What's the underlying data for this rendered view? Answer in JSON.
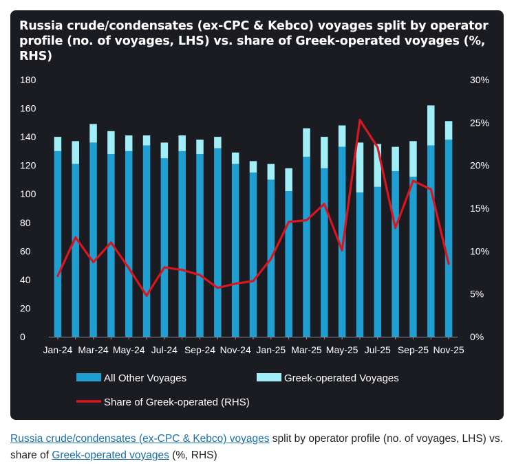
{
  "chart_data": {
    "type": "bar",
    "stacked": true,
    "title": "Russia crude/condensates (ex-CPC & Kebco) voyages split by operator profile (no. of voyages, LHS) vs. share of Greek-operated voyages (%, RHS)",
    "months": [
      "Jan-24",
      "Feb-24",
      "Mar-24",
      "Apr-24",
      "May-24",
      "Jun-24",
      "Jul-24",
      "Aug-24",
      "Sep-24",
      "Oct-24",
      "Nov-24",
      "Dec-24",
      "Jan-25",
      "Feb-25",
      "Mar-25",
      "Apr-25",
      "May-25",
      "Jun-25",
      "Jul-25",
      "Aug-25",
      "Sep-25",
      "Oct-25",
      "Nov-25"
    ],
    "x_tick_labels": [
      "Jan-24",
      "Mar-24",
      "May-24",
      "Jul-24",
      "Sep-24",
      "Nov-24",
      "Jan-25",
      "Mar-25",
      "May-25",
      "Jul-25",
      "Sep-25",
      "Nov-25"
    ],
    "series": [
      {
        "name": "All Other Voyages",
        "color": "#1f9fd1",
        "values": [
          130,
          121,
          136,
          128,
          130,
          134,
          125,
          130,
          128,
          132,
          121,
          115,
          110,
          102,
          126,
          118,
          133,
          101,
          105,
          116,
          112,
          134,
          138
        ]
      },
      {
        "name": "Greek-operated Voyages",
        "color": "#9feef8",
        "values": [
          10,
          16,
          13,
          16,
          11,
          7,
          11,
          11,
          10,
          8,
          8,
          8,
          11,
          16,
          20,
          22,
          15,
          35,
          30,
          17,
          25,
          28,
          13
        ]
      }
    ],
    "line_series": {
      "name": "Share of Greek-operated (RHS)",
      "color": "#d9161f",
      "axis": "right",
      "values": [
        7.1,
        11.6,
        8.7,
        11.0,
        8.0,
        4.8,
        8.1,
        7.8,
        7.2,
        5.7,
        6.2,
        6.5,
        9.1,
        13.4,
        13.6,
        15.5,
        10.1,
        25.3,
        22.1,
        12.7,
        18.2,
        17.2,
        8.5
      ]
    },
    "y_left": {
      "min": 0,
      "max": 180,
      "ticks": [
        "0",
        "20",
        "40",
        "60",
        "80",
        "100",
        "120",
        "140",
        "160",
        "180"
      ]
    },
    "y_right": {
      "min": 0,
      "max": 30,
      "ticks": [
        "0%",
        "5%",
        "10%",
        "15%",
        "20%",
        "25%",
        "30%"
      ]
    },
    "legend": [
      "All Other Voyages",
      "Greek-operated Voyages",
      "Share of Greek-operated (RHS)"
    ],
    "background": "#1b1c22"
  },
  "caption": {
    "part1_link": "Russia crude/condensates (ex-CPC & Kebco) voyages",
    "part2": " split by operator profile (no. of voyages, LHS) vs. share of ",
    "part3_link": "Greek-operated voyages",
    "part4": " (%, RHS)"
  }
}
